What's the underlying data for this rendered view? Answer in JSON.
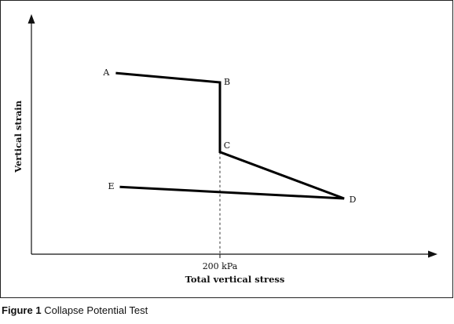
{
  "chart_data": {
    "type": "line",
    "xlabel": "Total vertical stress",
    "ylabel": "Vertical strain",
    "x_tick_labels": [
      "200 kPa"
    ],
    "reference_line": {
      "label": "200 kPa",
      "style": "dashed",
      "orientation": "vertical"
    },
    "points": [
      {
        "label": "A",
        "x": -0.52,
        "y": 0.78
      },
      {
        "label": "B",
        "x": 0.0,
        "y": 0.74
      },
      {
        "label": "C",
        "x": 0.0,
        "y": 0.44
      },
      {
        "label": "D",
        "x": 0.62,
        "y": 0.24
      },
      {
        "label": "E",
        "x": -0.5,
        "y": 0.29
      }
    ],
    "path_order": [
      "A",
      "B",
      "C",
      "D",
      "E"
    ],
    "grid": false,
    "axis_ticks_numeric": false
  },
  "caption": {
    "figure_label": "Figure 1",
    "text": "Collapse Potential Test"
  }
}
